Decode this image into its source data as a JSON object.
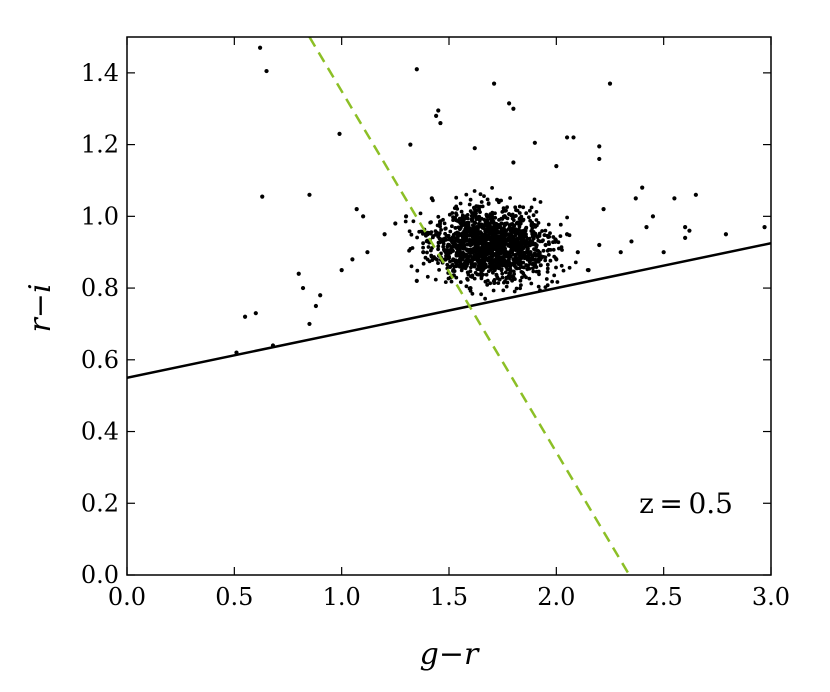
{
  "chart_data": {
    "type": "scatter",
    "title": "",
    "xlabel": "g−r",
    "ylabel": "r−i",
    "xlim": [
      0.0,
      3.0
    ],
    "ylim": [
      0.0,
      1.5
    ],
    "xticks": [
      "0.0",
      "0.5",
      "1.0",
      "1.5",
      "2.0",
      "2.5",
      "3.0"
    ],
    "yticks": [
      "0.0",
      "0.2",
      "0.4",
      "0.6",
      "0.8",
      "1.0",
      "1.2",
      "1.4"
    ],
    "grid": false,
    "annotation": "z = 0.5",
    "colors": {
      "points": "#000000",
      "solid_line": "#000000",
      "dashed_line": "#8cbf26"
    },
    "lines": [
      {
        "style": "solid",
        "x": [
          0.0,
          3.0
        ],
        "y": [
          0.55,
          0.925
        ]
      },
      {
        "style": "dashed",
        "x": [
          0.85,
          2.34
        ],
        "y": [
          1.5,
          0.0
        ]
      }
    ],
    "series": [
      {
        "x": [
          0.62,
          0.65,
          1.35,
          1.71,
          1.78,
          1.8,
          1.45,
          1.44,
          1.46,
          2.25,
          0.99,
          1.32,
          1.62,
          1.9,
          2.05,
          2.08,
          2.2,
          2.2,
          2.55,
          2.65,
          2.79,
          1.8,
          2.0,
          0.63,
          0.85,
          1.07,
          1.1,
          2.22,
          2.37,
          2.4,
          2.45,
          2.6,
          2.6,
          2.62,
          2.97,
          0.55,
          0.51,
          0.6,
          0.68,
          0.8,
          0.85,
          0.82,
          0.88,
          0.9,
          1.0,
          1.05,
          1.12,
          1.2,
          1.25,
          1.3,
          1.35,
          1.38,
          1.4,
          1.42,
          1.48,
          1.5,
          1.52,
          1.55,
          1.58,
          1.6,
          1.62,
          1.65,
          1.68,
          1.7,
          1.72,
          1.75,
          1.78,
          1.8,
          1.82,
          1.85,
          1.88,
          1.9,
          1.95,
          2.0,
          2.05,
          2.1,
          2.15,
          2.2,
          2.3,
          2.35,
          2.42,
          2.5,
          1.55,
          1.6,
          1.65,
          1.7,
          1.75,
          1.8,
          1.6,
          1.65,
          1.7,
          1.75,
          1.68,
          1.72,
          1.58,
          1.62
        ],
        "y": [
          1.47,
          1.405,
          1.41,
          1.37,
          1.315,
          1.3,
          1.295,
          1.28,
          1.26,
          1.37,
          1.23,
          1.2,
          1.19,
          1.205,
          1.22,
          1.22,
          1.195,
          1.16,
          1.05,
          1.06,
          0.95,
          1.15,
          1.14,
          1.055,
          1.06,
          1.02,
          1.0,
          1.02,
          1.05,
          1.08,
          1.0,
          0.97,
          0.94,
          0.96,
          0.97,
          0.72,
          0.62,
          0.73,
          0.64,
          0.84,
          0.7,
          0.8,
          0.75,
          0.78,
          0.85,
          0.88,
          0.9,
          0.95,
          0.98,
          1.0,
          0.82,
          0.9,
          0.95,
          1.05,
          0.88,
          0.92,
          0.85,
          0.95,
          1.0,
          0.9,
          0.96,
          0.93,
          0.88,
          0.92,
          0.97,
          0.9,
          0.94,
          0.88,
          0.92,
          0.96,
          0.9,
          0.86,
          0.92,
          0.88,
          0.95,
          0.9,
          0.85,
          0.92,
          0.9,
          0.93,
          0.97,
          0.9,
          0.86,
          0.8,
          0.84,
          0.89,
          0.87,
          0.83,
          0.93,
          0.91,
          0.95,
          0.9,
          0.98,
          0.86,
          0.94,
          1.02
        ]
      }
    ]
  }
}
